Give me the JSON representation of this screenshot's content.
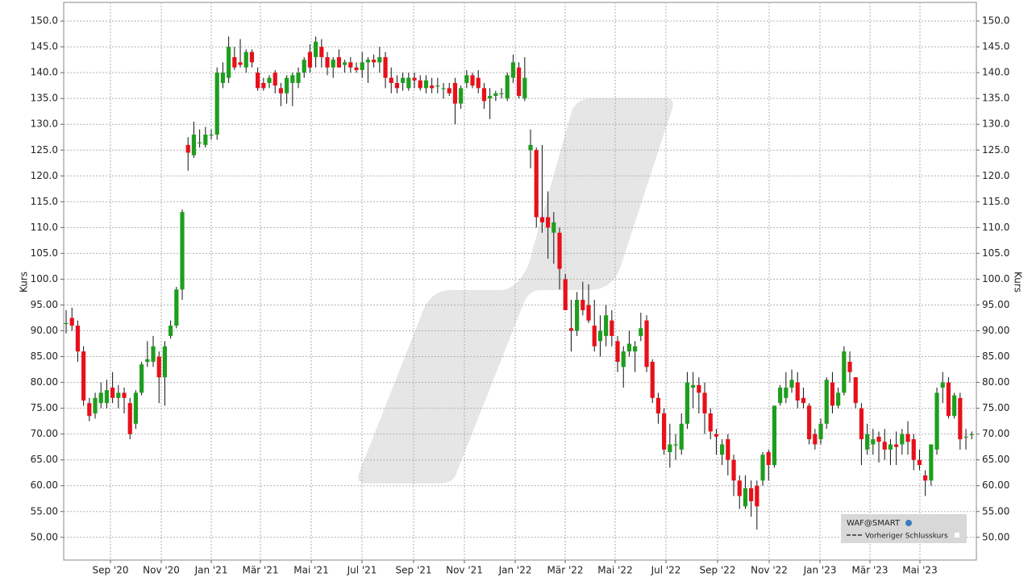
{
  "chart_data": {
    "type": "candlestick",
    "ylabel": "Kurs",
    "x": [
      0,
      1,
      2,
      3,
      4,
      5,
      6,
      7,
      8,
      9,
      10,
      11,
      12,
      13,
      14,
      15,
      16,
      17,
      18,
      19,
      20,
      21,
      22,
      23,
      24,
      25,
      26,
      27,
      28,
      29,
      30,
      31,
      32,
      33,
      34,
      35,
      36,
      37,
      38,
      39,
      40,
      41,
      42,
      43,
      44,
      45,
      46,
      47,
      48,
      49,
      50,
      51,
      52,
      53,
      54,
      55,
      56,
      57,
      58,
      59,
      60,
      61,
      62,
      63,
      64,
      65,
      66,
      67,
      68,
      69,
      70,
      71,
      72,
      73,
      74,
      75,
      76,
      77,
      78,
      79,
      80,
      81,
      82,
      83,
      84,
      85,
      86,
      87,
      88,
      89,
      90,
      91,
      92,
      93,
      94,
      95,
      96,
      97,
      98,
      99,
      100,
      101,
      102,
      103,
      104,
      105,
      106,
      107,
      108,
      109,
      110,
      111,
      112,
      113,
      114,
      115,
      116,
      117,
      118,
      119,
      120,
      121,
      122,
      123,
      124,
      125,
      126,
      127,
      128,
      129,
      130,
      131,
      132,
      133,
      134,
      135,
      136,
      137,
      138,
      139,
      140,
      141,
      142,
      143,
      144,
      145,
      146,
      147,
      148,
      149,
      150,
      151,
      152,
      153,
      154,
      155,
      156
    ],
    "open": [
      91.5,
      92.5,
      91,
      86,
      76,
      74,
      76,
      76,
      79,
      77,
      78,
      76,
      72,
      78,
      84,
      84,
      85,
      81,
      89,
      91,
      98,
      126,
      124,
      126.5,
      126,
      128,
      128,
      138,
      139,
      143,
      142,
      141,
      144,
      140,
      138,
      138,
      140,
      137,
      136,
      138,
      138,
      140,
      144,
      143,
      145,
      143,
      141,
      143,
      141.5,
      142,
      141,
      140.5,
      142,
      142.5,
      142,
      143,
      139,
      138,
      138,
      137,
      139,
      138.5,
      137,
      137.5,
      137.5,
      137,
      137,
      138,
      134,
      138,
      139.5,
      139,
      137,
      135,
      135.5,
      136,
      135,
      139,
      141,
      135,
      125,
      125,
      112,
      112,
      109,
      109,
      100,
      90.5,
      90,
      96,
      95,
      91,
      88,
      89,
      92,
      88,
      83,
      86,
      86,
      89,
      92,
      84,
      77,
      74,
      66.5,
      68,
      67,
      72,
      79,
      79.5,
      78,
      74,
      70,
      66,
      69,
      65,
      61,
      56,
      59.5,
      60,
      61,
      66.5,
      64,
      76,
      77,
      79,
      80,
      77,
      75.5,
      70,
      69,
      72,
      80,
      75.5,
      78,
      84,
      81,
      75,
      67,
      68,
      69.5,
      68.5,
      67,
      68,
      68,
      70,
      69,
      65,
      62,
      61,
      67,
      79,
      80,
      73.5,
      77,
      69.5,
      70
    ],
    "high": [
      94,
      94.5,
      92,
      87,
      77,
      78,
      80,
      80.5,
      82,
      79.5,
      79,
      77,
      78.5,
      84,
      88,
      89,
      86,
      88,
      92,
      98.5,
      113.5,
      127.5,
      130.5,
      129,
      129.5,
      129,
      141,
      142,
      147,
      145,
      146.5,
      144.5,
      144.5,
      141,
      139,
      139.5,
      140.5,
      138,
      139.5,
      140,
      141,
      143,
      145.5,
      147,
      146.5,
      144,
      143,
      144.5,
      142.5,
      143,
      142,
      144,
      143,
      143.5,
      145,
      144,
      141,
      139.5,
      140,
      140,
      140,
      139.5,
      139.5,
      139,
      139,
      138,
      138,
      139,
      137.5,
      140.5,
      140,
      140.5,
      138,
      137,
      136.5,
      137,
      140,
      143.5,
      142,
      143,
      129,
      125.5,
      126,
      117,
      113,
      110,
      101,
      96,
      97.5,
      99.5,
      99,
      96,
      93,
      95,
      94,
      89,
      87,
      90,
      88,
      93.5,
      93,
      84.5,
      78,
      75,
      72,
      70,
      74,
      82,
      82,
      81,
      80,
      75,
      71,
      69,
      70,
      66,
      62,
      62,
      61,
      61,
      66.5,
      67,
      75.5,
      79.5,
      82,
      82.5,
      82,
      79,
      76,
      71,
      73,
      81,
      82,
      79,
      87,
      86,
      81,
      76,
      72,
      71,
      70.5,
      71,
      69,
      70.5,
      71,
      72.5,
      70,
      67,
      63,
      68,
      79,
      82,
      81,
      78,
      78,
      71,
      70.5
    ],
    "low": [
      89.5,
      90,
      84,
      75.5,
      72.5,
      73,
      75,
      75,
      76,
      75,
      74,
      69,
      71,
      77.5,
      83,
      83,
      76,
      75.5,
      88.5,
      90.5,
      96,
      121,
      123.5,
      125.5,
      125.5,
      127,
      127,
      137,
      138,
      140.5,
      141,
      140,
      141,
      136.5,
      136.5,
      137,
      136,
      133.5,
      134,
      133.5,
      137,
      139,
      140,
      141,
      141,
      139.5,
      139,
      141,
      140,
      140,
      140,
      139,
      138,
      141,
      140,
      137,
      136,
      136,
      136.5,
      136.5,
      137,
      136.5,
      136,
      136,
      136,
      135,
      135.5,
      130,
      133,
      137,
      137,
      136,
      133,
      131,
      134.5,
      135,
      134.5,
      138,
      135,
      134.5,
      121.5,
      110,
      109,
      104,
      103,
      98,
      94,
      86,
      89,
      93,
      91.5,
      86,
      85,
      87,
      87,
      82,
      79,
      85,
      82,
      88,
      82,
      76,
      72,
      66,
      63.5,
      65,
      66,
      71,
      75,
      74,
      70,
      69,
      66,
      64,
      62,
      58,
      55.5,
      55.5,
      54,
      51.5,
      60,
      61,
      63.5,
      75.5,
      76,
      78,
      75,
      75,
      68,
      67,
      68,
      71,
      74,
      75,
      77.5,
      80,
      75,
      64,
      66,
      66,
      64.5,
      65,
      64,
      64,
      66,
      66,
      63,
      63,
      58,
      60,
      66,
      76,
      73,
      73,
      67,
      67,
      69
    ],
    "close": [
      91.5,
      91,
      86,
      76.5,
      73.5,
      77,
      78,
      78.5,
      77,
      78,
      77,
      70,
      78,
      83.5,
      84.5,
      87,
      81,
      87,
      91,
      98,
      113,
      124.5,
      128,
      126.5,
      128,
      128,
      140,
      140,
      145,
      141,
      141.5,
      144,
      142,
      137,
      137,
      139,
      137.5,
      136,
      139,
      139.5,
      140,
      142.5,
      141,
      146,
      143,
      141,
      142.5,
      141,
      142,
      141,
      140.5,
      142,
      142.5,
      142,
      143,
      139,
      138,
      137,
      139,
      139,
      138.5,
      137,
      138.5,
      137,
      137.5,
      137,
      136,
      134,
      137,
      139.5,
      137.5,
      137,
      134.5,
      135.5,
      136,
      136,
      139.5,
      142,
      135.5,
      139,
      126,
      112,
      111,
      110,
      111,
      102,
      94,
      90,
      96,
      94,
      92,
      87,
      90,
      93,
      89,
      84,
      86,
      87.5,
      87,
      90.5,
      83,
      77,
      74,
      67,
      68,
      68,
      72,
      80,
      79.5,
      78,
      74,
      70.5,
      69.5,
      68,
      65,
      61,
      58,
      59.5,
      57,
      56,
      66,
      64,
      75.5,
      79,
      79,
      80.5,
      76.5,
      76,
      69,
      68,
      72,
      80.5,
      75.5,
      78,
      86,
      82,
      76,
      69,
      70,
      69,
      68.5,
      67,
      68,
      67.5,
      70,
      68.5,
      65,
      64,
      61,
      68,
      78,
      80,
      73.5,
      77.5,
      69,
      69.5,
      70
    ],
    "up_color": "#1e9e1e",
    "down_color": "#e8101a",
    "xlim": [
      -0.42,
      156.8
    ],
    "xticks": [
      {
        "value": 7.64,
        "label": "Sep '20"
      },
      {
        "value": 16.39,
        "label": "Nov '20"
      },
      {
        "value": 25,
        "label": "Jan '21"
      },
      {
        "value": 33.47,
        "label": "Mär '21"
      },
      {
        "value": 42.22,
        "label": "Mai '21"
      },
      {
        "value": 50.97,
        "label": "Jul '21"
      },
      {
        "value": 59.86,
        "label": "Sep '21"
      },
      {
        "value": 68.61,
        "label": "Nov '21"
      },
      {
        "value": 77.36,
        "label": "Jan '22"
      },
      {
        "value": 85.97,
        "label": "Mär '22"
      },
      {
        "value": 94.58,
        "label": "Mai '22"
      },
      {
        "value": 103.33,
        "label": "Jul '22"
      },
      {
        "value": 112.22,
        "label": "Sep '22"
      },
      {
        "value": 121.11,
        "label": "Nov '22"
      },
      {
        "value": 129.86,
        "label": "Jan '23"
      },
      {
        "value": 138.47,
        "label": "Mär '23"
      },
      {
        "value": 147.08,
        "label": "Mai '23"
      }
    ],
    "ylim": [
      45.6,
      153.6
    ],
    "yticks": [
      {
        "value": 50,
        "label": "50.00"
      },
      {
        "value": 55,
        "label": "55.00"
      },
      {
        "value": 60,
        "label": "60.00"
      },
      {
        "value": 65,
        "label": "65.00"
      },
      {
        "value": 70,
        "label": "70.00"
      },
      {
        "value": 75,
        "label": "75.00"
      },
      {
        "value": 80,
        "label": "80.00"
      },
      {
        "value": 85,
        "label": "85.00"
      },
      {
        "value": 90,
        "label": "90.00"
      },
      {
        "value": 95,
        "label": "95.00"
      },
      {
        "value": 100,
        "label": "100.0"
      },
      {
        "value": 105,
        "label": "105.0"
      },
      {
        "value": 110,
        "label": "110.0"
      },
      {
        "value": 115,
        "label": "115.0"
      },
      {
        "value": 120,
        "label": "120.0"
      },
      {
        "value": 125,
        "label": "125.0"
      },
      {
        "value": 130,
        "label": "130.0"
      },
      {
        "value": 135,
        "label": "135.0"
      },
      {
        "value": 140,
        "label": "140.0"
      },
      {
        "value": 145,
        "label": "145.0"
      },
      {
        "value": 150,
        "label": "150.0"
      }
    ],
    "grid": true,
    "legend": [
      "WAF@SMART",
      "Vorheriger Schlusskurs"
    ]
  }
}
